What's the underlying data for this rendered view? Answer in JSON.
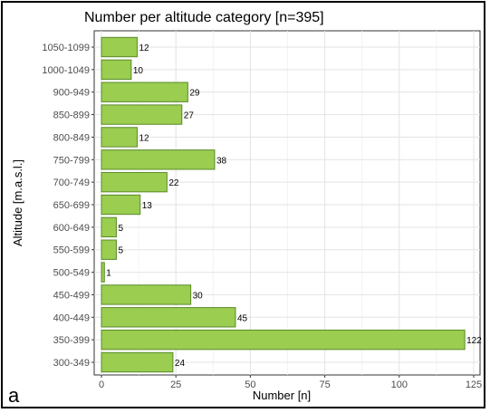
{
  "panel_label": "a",
  "chart_data": {
    "type": "bar",
    "orientation": "horizontal",
    "title": "Number per altitude category [n=395]",
    "xlabel": "Number [n]",
    "ylabel": "Altitude [m.a.s.l.]",
    "categories": [
      "1050-1099",
      "1000-1049",
      "900-949",
      "850-899",
      "800-849",
      "750-799",
      "700-749",
      "650-699",
      "600-649",
      "550-599",
      "500-549",
      "450-499",
      "400-449",
      "350-399",
      "300-349"
    ],
    "values": [
      12,
      10,
      29,
      27,
      12,
      38,
      22,
      13,
      5,
      5,
      1,
      30,
      45,
      122,
      24
    ],
    "xlim": [
      0,
      125
    ],
    "xticks": [
      0,
      25,
      50,
      75,
      100,
      125
    ],
    "grid": true,
    "bar_color": "#9acd50",
    "bar_edge_color": "#5a8a2a"
  }
}
